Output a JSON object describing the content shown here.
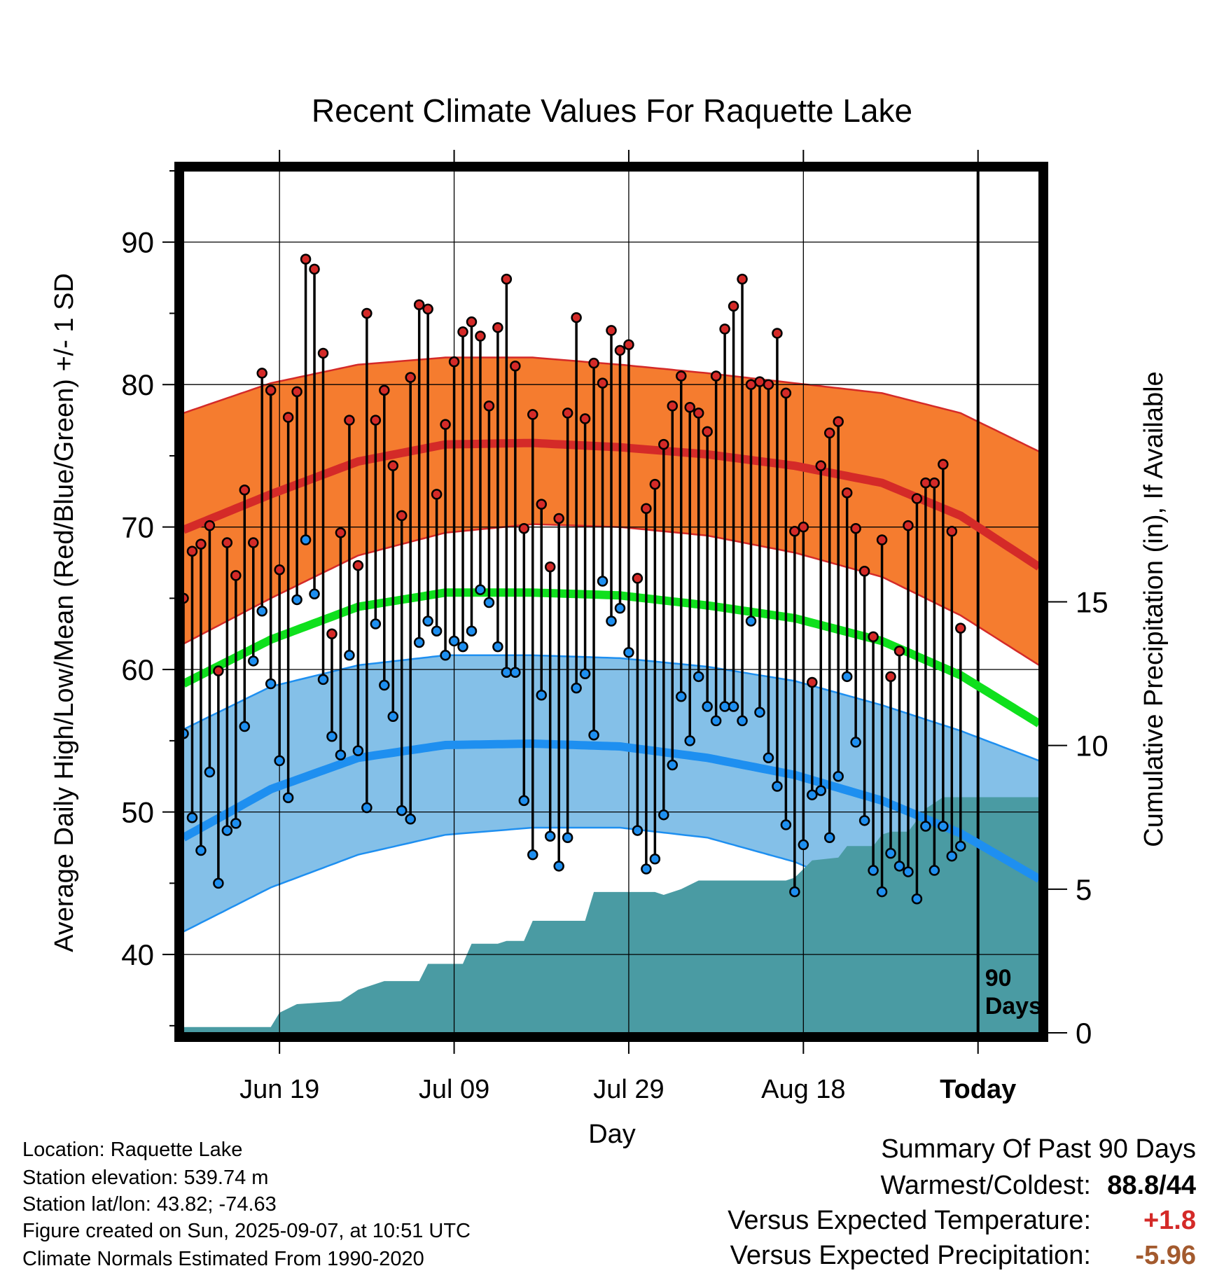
{
  "chart_data": {
    "type": "line",
    "title": "Recent Climate Values For Raquette Lake",
    "xlabel": "Day",
    "ylabel": "Average Daily High/Low/Mean (Red/Blue/Green) +/- 1 SD",
    "y2label": "Cumulative Precipitation (in), If Available",
    "ylim": [
      34.5,
      95
    ],
    "y2lim": [
      0,
      30
    ],
    "y_ticks": [
      "40",
      "50",
      "60",
      "70",
      "80",
      "90"
    ],
    "y2_ticks": [
      "0",
      "5",
      "10",
      "15"
    ],
    "x_range_days": [
      -89,
      9
    ],
    "x_ticks": [
      {
        "day": -78,
        "label": "Jun 19"
      },
      {
        "day": -58,
        "label": "Jul 09"
      },
      {
        "day": -38,
        "label": "Jul 29"
      },
      {
        "day": -18,
        "label": "Aug 18"
      },
      {
        "day": 2,
        "label": "Today"
      }
    ],
    "today_label": "90 Days",
    "grid": true,
    "colors": {
      "high_band": "#f57c2f",
      "high_edge": "#d42a28",
      "high_mean": "#d42a28",
      "low_band": "#84c0e8",
      "low_edge": "#1e8ff0",
      "low_mean": "#1e8ff0",
      "mean": "#0fe01d",
      "precip": "#4a9ba3",
      "high_dot": "#d42a28",
      "low_dot": "#1e8ff0"
    },
    "normals": {
      "days": [
        -89,
        -79,
        -69,
        -59,
        -49,
        -39,
        -29,
        -19,
        -9,
        0,
        9
      ],
      "high_mean": [
        69.8,
        72.3,
        74.6,
        75.8,
        75.9,
        75.6,
        75.1,
        74.3,
        73.1,
        70.8,
        67.2
      ],
      "high_upper": [
        78.0,
        80.1,
        81.4,
        81.9,
        81.9,
        81.4,
        80.8,
        80.1,
        79.4,
        78.0,
        75.3
      ],
      "high_lower": [
        61.8,
        65.0,
        68.0,
        69.6,
        70.2,
        70.0,
        69.4,
        68.2,
        66.5,
        63.8,
        60.3
      ],
      "mean": [
        59.0,
        62.1,
        64.4,
        65.4,
        65.4,
        65.2,
        64.5,
        63.6,
        62.0,
        59.6,
        56.2
      ],
      "low_mean": [
        48.2,
        51.6,
        53.8,
        54.7,
        54.8,
        54.6,
        53.8,
        52.6,
        50.8,
        48.5,
        45.3
      ],
      "low_upper": [
        55.8,
        58.8,
        60.3,
        61.0,
        61.0,
        60.8,
        60.2,
        59.2,
        57.5,
        55.7,
        53.6
      ],
      "low_lower": [
        41.6,
        44.7,
        47.0,
        48.4,
        48.9,
        48.9,
        48.2,
        46.5,
        43.9,
        41.0,
        37.0
      ]
    },
    "observed": {
      "start_day": -89,
      "highs": [
        65.0,
        68.3,
        68.8,
        70.1,
        59.9,
        68.9,
        66.6,
        72.6,
        68.9,
        80.8,
        79.6,
        67.0,
        77.7,
        79.5,
        88.8,
        88.1,
        82.2,
        62.5,
        69.6,
        77.5,
        67.3,
        85.0,
        77.5,
        79.6,
        74.3,
        70.8,
        80.5,
        85.6,
        85.3,
        72.3,
        77.2,
        81.6,
        83.7,
        84.4,
        83.4,
        78.5,
        84.0,
        87.4,
        81.3,
        69.9,
        77.9,
        71.6,
        67.2,
        70.6,
        78.0,
        84.7,
        77.6,
        81.5,
        80.1,
        83.8,
        82.4,
        82.8,
        66.4,
        71.3,
        73.0,
        75.8,
        78.5,
        80.6,
        78.4,
        78.0,
        76.7,
        80.6,
        83.9,
        85.5,
        87.4,
        80.0,
        80.2,
        80.0,
        83.6,
        79.4,
        69.7,
        70.0,
        59.1,
        74.3,
        76.6,
        77.4,
        72.4,
        69.9,
        66.9,
        62.3,
        69.1,
        59.5,
        61.3,
        70.1,
        72.0,
        73.1,
        73.1,
        74.4,
        69.7,
        62.9
      ],
      "lows": [
        55.5,
        49.6,
        47.3,
        52.8,
        45.0,
        48.7,
        49.2,
        56.0,
        60.6,
        64.1,
        59.0,
        53.6,
        51.0,
        64.9,
        69.1,
        65.3,
        59.3,
        55.3,
        54.0,
        61.0,
        54.3,
        50.3,
        63.2,
        58.9,
        56.7,
        50.1,
        49.5,
        61.9,
        63.4,
        62.7,
        61.0,
        62.0,
        61.6,
        62.7,
        65.6,
        64.7,
        61.6,
        59.8,
        59.8,
        50.8,
        47.0,
        58.2,
        48.3,
        46.2,
        48.2,
        58.7,
        59.7,
        55.4,
        66.2,
        63.4,
        64.3,
        61.2,
        48.7,
        46.0,
        46.7,
        49.8,
        53.3,
        58.1,
        55.0,
        59.5,
        57.4,
        56.4,
        57.4,
        57.4,
        56.4,
        63.4,
        57.0,
        53.8,
        51.8,
        49.1,
        44.4,
        47.7,
        51.2,
        51.5,
        48.2,
        52.5,
        59.5,
        54.9,
        49.4,
        45.9,
        44.4,
        47.1,
        46.2,
        45.8,
        43.9,
        49.0,
        45.9,
        49.0,
        46.9,
        47.6
      ]
    },
    "precipitation": {
      "steps": [
        [
          -89,
          0.2
        ],
        [
          -79,
          0.2
        ],
        [
          -78,
          0.7
        ],
        [
          -76,
          1.0
        ],
        [
          -71,
          1.1
        ],
        [
          -69,
          1.5
        ],
        [
          -66,
          1.8
        ],
        [
          -62,
          1.8
        ],
        [
          -61,
          2.4
        ],
        [
          -57,
          2.4
        ],
        [
          -56,
          3.1
        ],
        [
          -53,
          3.1
        ],
        [
          -52,
          3.2
        ],
        [
          -50,
          3.2
        ],
        [
          -49,
          3.9
        ],
        [
          -43,
          3.9
        ],
        [
          -42,
          4.9
        ],
        [
          -35,
          4.9
        ],
        [
          -34,
          4.8
        ],
        [
          -32,
          5.0
        ],
        [
          -30,
          5.3
        ],
        [
          -20,
          5.3
        ],
        [
          -19,
          5.4
        ],
        [
          -17,
          6.0
        ],
        [
          -14,
          6.1
        ],
        [
          -13,
          6.5
        ],
        [
          -10,
          6.5
        ],
        [
          -9,
          6.9
        ],
        [
          -8,
          7.0
        ],
        [
          -6,
          7.0
        ],
        [
          -5,
          7.4
        ],
        [
          -4,
          7.8
        ],
        [
          -3,
          8.0
        ],
        [
          -2,
          8.2
        ],
        [
          0,
          8.2
        ],
        [
          9,
          8.2
        ]
      ]
    }
  },
  "station": {
    "location": "Location: Raquette Lake",
    "elevation": "Station elevation: 539.74 m",
    "latlon": "Station lat/lon: 43.82; -74.63",
    "created": "Figure created on Sun, 2025-09-07, at 10:51 UTC",
    "normals": "Climate Normals Estimated From 1990-2020"
  },
  "summary": {
    "title": "Summary Of Past 90 Days",
    "warmest_label": "Warmest/Coldest:",
    "warmest_max": "88.8",
    "warmest_sep": "/",
    "warmest_min": "44",
    "temp_label": "Versus Expected Temperature:",
    "temp_value": "+1.8",
    "temp_color": "#d42a28",
    "precip_label": "Versus Expected Precipitation:",
    "precip_value": "-5.96",
    "precip_color": "#a35a2e"
  }
}
